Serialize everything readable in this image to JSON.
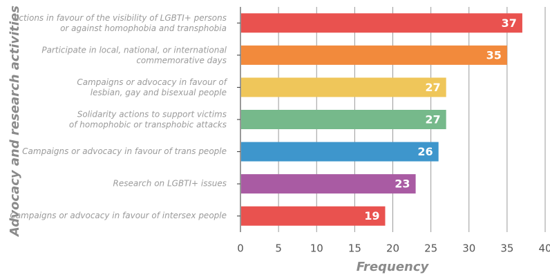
{
  "chart_data": {
    "type": "bar",
    "orientation": "horizontal",
    "xlabel": "Frequency",
    "ylabel": "Advocacy and research activities",
    "categories": [
      "Actions in favour of the visibility of LGBTI+ persons\nor against homophobia and transphobia",
      "Participate in local, national, or international\ncommemorative days",
      "Campaigns or advocacy in favour of\nlesbian, gay and bisexual people",
      "Solidarity actions to support victims\nof homophobic or transphobic attacks",
      "Campaigns or advocacy in favour of trans people",
      "Research on LGBTI+ issues",
      "Campaigns or advocacy in favour of intersex people"
    ],
    "values": [
      37,
      35,
      27,
      27,
      26,
      23,
      19
    ],
    "colors": [
      "#e9524f",
      "#f28a3c",
      "#efc65a",
      "#76b98b",
      "#3e96cc",
      "#a95ba3",
      "#e9524f"
    ],
    "xlim": [
      0,
      40
    ],
    "xticks": [
      0,
      5,
      10,
      15,
      20,
      25,
      30,
      35,
      40
    ],
    "grid": true
  }
}
